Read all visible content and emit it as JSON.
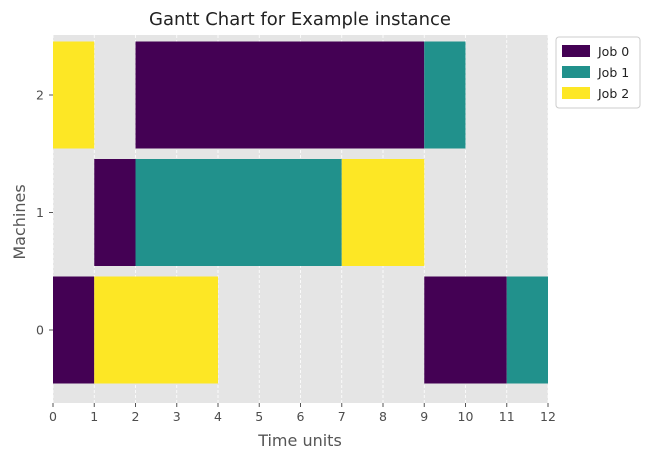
{
  "chart_data": {
    "type": "gantt",
    "title": "Gantt Chart for Example instance",
    "xlabel": "Time units",
    "ylabel": "Machines",
    "xlim": [
      0,
      12
    ],
    "x_ticks": [
      0,
      1,
      2,
      3,
      4,
      5,
      6,
      7,
      8,
      9,
      10,
      11,
      12
    ],
    "y_ticks": [
      0,
      1,
      2
    ],
    "grid": true,
    "background": "#e5e5e5",
    "legend_position": "upper right, outside plot",
    "series": [
      {
        "name": "Job 0",
        "color": "#440154"
      },
      {
        "name": "Job 1",
        "color": "#21918c"
      },
      {
        "name": "Job 2",
        "color": "#fde725"
      }
    ],
    "tasks": [
      {
        "job": "Job 0",
        "machine": 0,
        "start": 0,
        "end": 1
      },
      {
        "job": "Job 0",
        "machine": 1,
        "start": 1,
        "end": 2
      },
      {
        "job": "Job 0",
        "machine": 2,
        "start": 2,
        "end": 9
      },
      {
        "job": "Job 0",
        "machine": 0,
        "start": 9,
        "end": 11
      },
      {
        "job": "Job 1",
        "machine": 1,
        "start": 2,
        "end": 7
      },
      {
        "job": "Job 1",
        "machine": 2,
        "start": 9,
        "end": 10
      },
      {
        "job": "Job 1",
        "machine": 0,
        "start": 11,
        "end": 12
      },
      {
        "job": "Job 2",
        "machine": 2,
        "start": 0,
        "end": 1
      },
      {
        "job": "Job 2",
        "machine": 0,
        "start": 1,
        "end": 4
      },
      {
        "job": "Job 2",
        "machine": 1,
        "start": 7,
        "end": 9
      }
    ]
  }
}
